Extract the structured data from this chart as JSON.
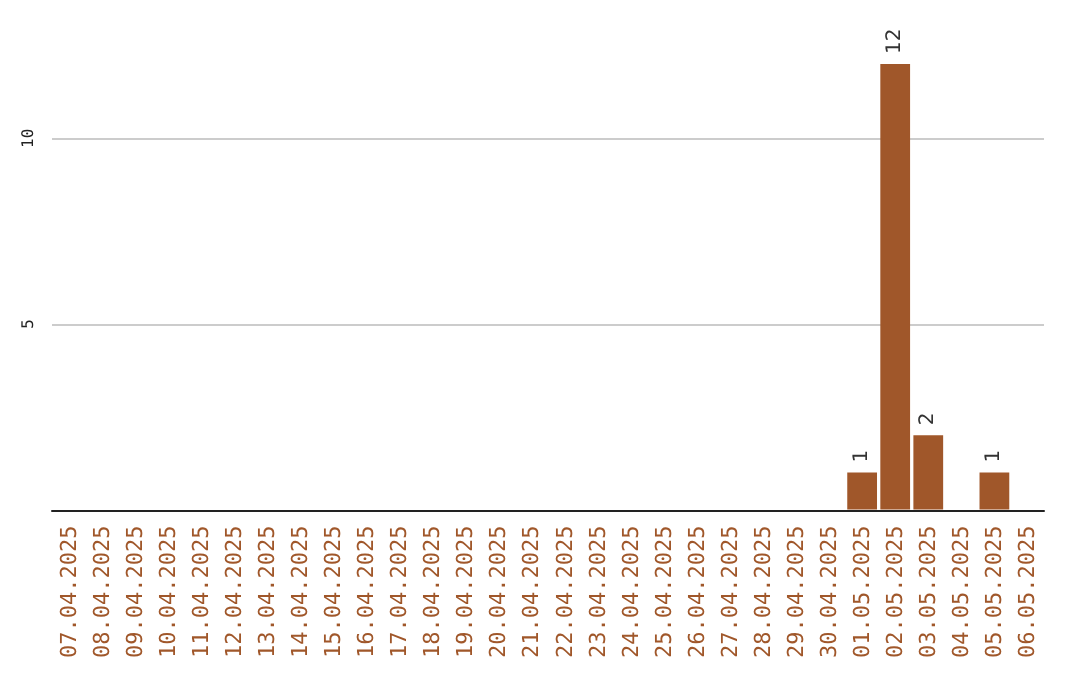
{
  "chart_data": {
    "type": "bar",
    "categories": [
      "07.04.2025",
      "08.04.2025",
      "09.04.2025",
      "10.04.2025",
      "11.04.2025",
      "12.04.2025",
      "13.04.2025",
      "14.04.2025",
      "15.04.2025",
      "16.04.2025",
      "17.04.2025",
      "18.04.2025",
      "19.04.2025",
      "20.04.2025",
      "21.04.2025",
      "22.04.2025",
      "23.04.2025",
      "24.04.2025",
      "25.04.2025",
      "26.04.2025",
      "27.04.2025",
      "28.04.2025",
      "29.04.2025",
      "30.04.2025",
      "01.05.2025",
      "02.05.2025",
      "03.05.2025",
      "04.05.2025",
      "05.05.2025",
      "06.05.2025"
    ],
    "values": [
      0,
      0,
      0,
      0,
      0,
      0,
      0,
      0,
      0,
      0,
      0,
      0,
      0,
      0,
      0,
      0,
      0,
      0,
      0,
      0,
      0,
      0,
      0,
      0,
      1,
      12,
      2,
      0,
      1,
      0
    ],
    "value_labels": [
      null,
      null,
      null,
      null,
      null,
      null,
      null,
      null,
      null,
      null,
      null,
      null,
      null,
      null,
      null,
      null,
      null,
      null,
      null,
      null,
      null,
      null,
      null,
      null,
      "1",
      "12",
      "2",
      null,
      "1",
      null
    ],
    "color": "#a0572a",
    "ylim": [
      0,
      12
    ],
    "yticks": [
      5,
      10
    ],
    "grid": "y"
  }
}
